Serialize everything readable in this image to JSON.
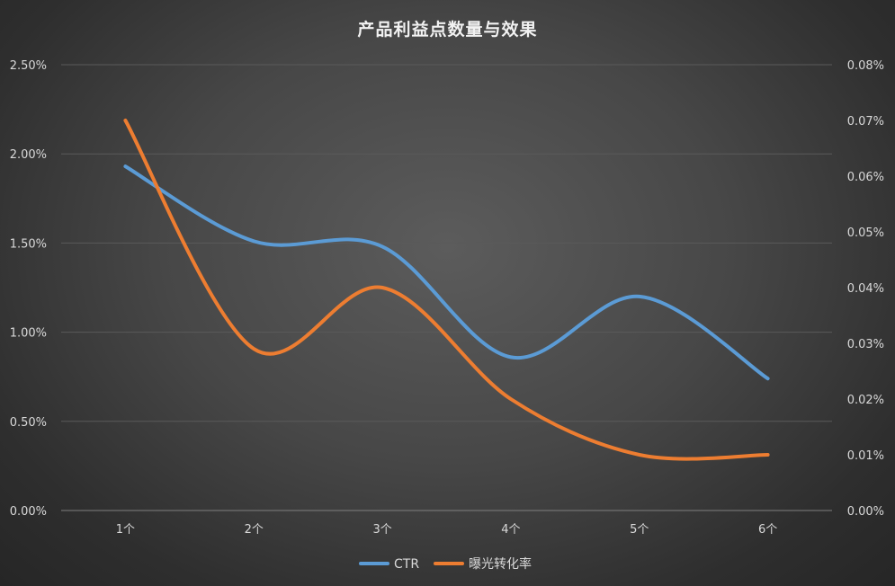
{
  "chart_data": {
    "type": "line",
    "title": "产品利益点数量与效果",
    "categories": [
      "1个",
      "2个",
      "3个",
      "4个",
      "5个",
      "6个"
    ],
    "series": [
      {
        "name": "CTR",
        "axis": "left",
        "color": "#5b9bd5",
        "values": [
          0.0193,
          0.0151,
          0.0148,
          0.0086,
          0.012,
          0.0074
        ]
      },
      {
        "name": "曝光转化率",
        "axis": "right",
        "color": "#ed7d31",
        "values": [
          0.0007,
          0.00029,
          0.0004,
          0.0002,
          0.0001,
          0.0001
        ]
      }
    ],
    "y_left": {
      "ylim": [
        0,
        0.025
      ],
      "ticks": [
        0,
        0.005,
        0.01,
        0.015,
        0.02,
        0.025
      ],
      "tick_labels": [
        "0.00%",
        "0.50%",
        "1.00%",
        "1.50%",
        "2.00%",
        "2.50%"
      ]
    },
    "y_right": {
      "ylim": [
        0,
        0.0008
      ],
      "ticks": [
        0,
        0.0001,
        0.0002,
        0.0003,
        0.0004,
        0.0005,
        0.0006,
        0.0007,
        0.0008
      ],
      "tick_labels": [
        "0.00%",
        "0.01%",
        "0.02%",
        "0.03%",
        "0.04%",
        "0.05%",
        "0.06%",
        "0.07%",
        "0.08%"
      ]
    },
    "smooth": true,
    "grid": true,
    "legend_position": "bottom",
    "gridline_color": "#5a5a5a",
    "axis_line_color": "#7f7f7f",
    "text_color": "#d9d9d9"
  }
}
